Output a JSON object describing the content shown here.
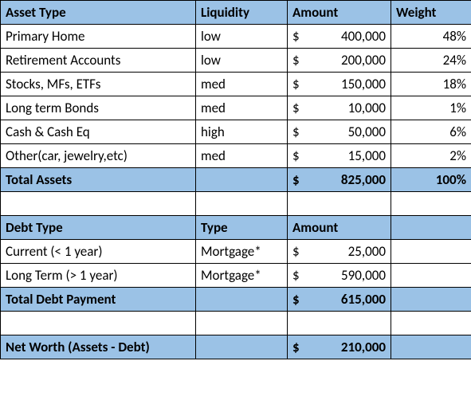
{
  "colors": {
    "header_bg": "#9bc2e6",
    "border": "#000000",
    "text": "#000000"
  },
  "assets": {
    "headers": {
      "c0": "Asset Type",
      "c1": "Liquidity",
      "c2": "Amount",
      "c3": "Weight"
    },
    "rows": [
      {
        "name": "Primary Home",
        "liq": "low",
        "cur": "$",
        "amt": "400,000",
        "wt": "48%"
      },
      {
        "name": "Retirement Accounts",
        "liq": "low",
        "cur": "$",
        "amt": "200,000",
        "wt": "24%"
      },
      {
        "name": "Stocks, MFs, ETFs",
        "liq": "med",
        "cur": "$",
        "amt": "150,000",
        "wt": "18%"
      },
      {
        "name": "Long term Bonds",
        "liq": "med",
        "cur": "$",
        "amt": "10,000",
        "wt": "1%"
      },
      {
        "name": "Cash & Cash Eq",
        "liq": "high",
        "cur": "$",
        "amt": "50,000",
        "wt": "6%"
      },
      {
        "name": "Other(car, jewelry,etc)",
        "liq": "med",
        "cur": "$",
        "amt": "15,000",
        "wt": "2%"
      }
    ],
    "total": {
      "label": "Total Assets",
      "cur": "$",
      "amt": "825,000",
      "wt": "100%"
    }
  },
  "debt": {
    "headers": {
      "c0": "Debt Type",
      "c1": "Type",
      "c2": "Amount"
    },
    "rows": [
      {
        "name": "Current (< 1 year)",
        "type": "Mortgage*",
        "cur": "$",
        "amt": "25,000"
      },
      {
        "name": "Long Term (> 1 year)",
        "type": "Mortgage*",
        "cur": "$",
        "amt": "590,000"
      }
    ],
    "total": {
      "label": "Total Debt Payment",
      "cur": "$",
      "amt": "615,000"
    }
  },
  "networth": {
    "label": "Net Worth (Assets - Debt)",
    "cur": "$",
    "amt": "210,000"
  }
}
